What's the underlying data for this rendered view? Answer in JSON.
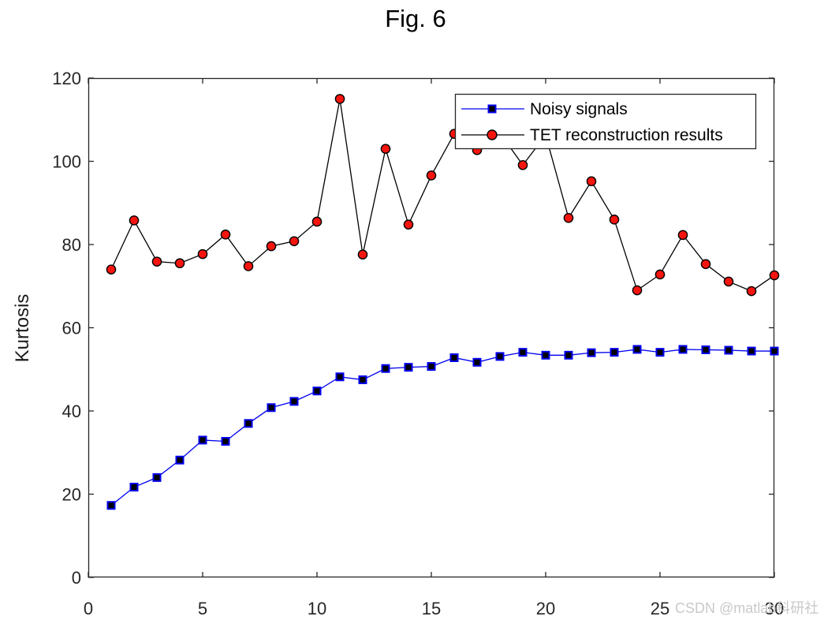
{
  "figure": {
    "watermark": "CSDN @matlab科研社"
  },
  "chart_data": {
    "type": "line",
    "title": "Fig. 6",
    "xlabel": "",
    "ylabel": "Kurtosis",
    "xlim": [
      0,
      30
    ],
    "ylim": [
      0,
      120
    ],
    "xticks": [
      0,
      5,
      10,
      15,
      20,
      25,
      30
    ],
    "yticks": [
      0,
      20,
      40,
      60,
      80,
      100,
      120
    ],
    "grid": false,
    "legend_position": "upper-right-inside",
    "x": [
      1,
      2,
      3,
      4,
      5,
      6,
      7,
      8,
      9,
      10,
      11,
      12,
      13,
      14,
      15,
      16,
      17,
      18,
      19,
      20,
      21,
      22,
      23,
      24,
      25,
      26,
      27,
      28,
      29,
      30
    ],
    "series": [
      {
        "name": "Noisy signals",
        "line_color": "#0000f0",
        "marker": "square",
        "marker_fill": "#000000",
        "marker_edge": "#0000f0",
        "values": [
          17.3,
          21.7,
          24.0,
          28.2,
          33.0,
          32.7,
          37.0,
          40.8,
          42.3,
          44.8,
          48.2,
          47.5,
          50.2,
          50.5,
          50.7,
          52.8,
          51.7,
          53.1,
          54.1,
          53.4,
          53.4,
          54.0,
          54.1,
          54.8,
          54.1,
          54.8,
          54.7,
          54.6,
          54.4,
          54.4
        ]
      },
      {
        "name": "TET reconstruction results",
        "line_color": "#000000",
        "marker": "circle",
        "marker_fill": "#f5150f",
        "marker_edge": "#000000",
        "values": [
          74.0,
          85.8,
          75.9,
          75.5,
          77.7,
          82.4,
          74.8,
          79.6,
          80.8,
          85.5,
          115.0,
          77.6,
          103.0,
          84.8,
          96.6,
          106.6,
          102.7,
          106.8,
          99.1,
          106.3,
          86.4,
          95.2,
          86.0,
          69.0,
          72.8,
          82.3,
          75.3,
          71.1,
          68.8,
          72.6
        ]
      }
    ],
    "axis_color": "#262626",
    "tick_label_color": "#262626"
  }
}
